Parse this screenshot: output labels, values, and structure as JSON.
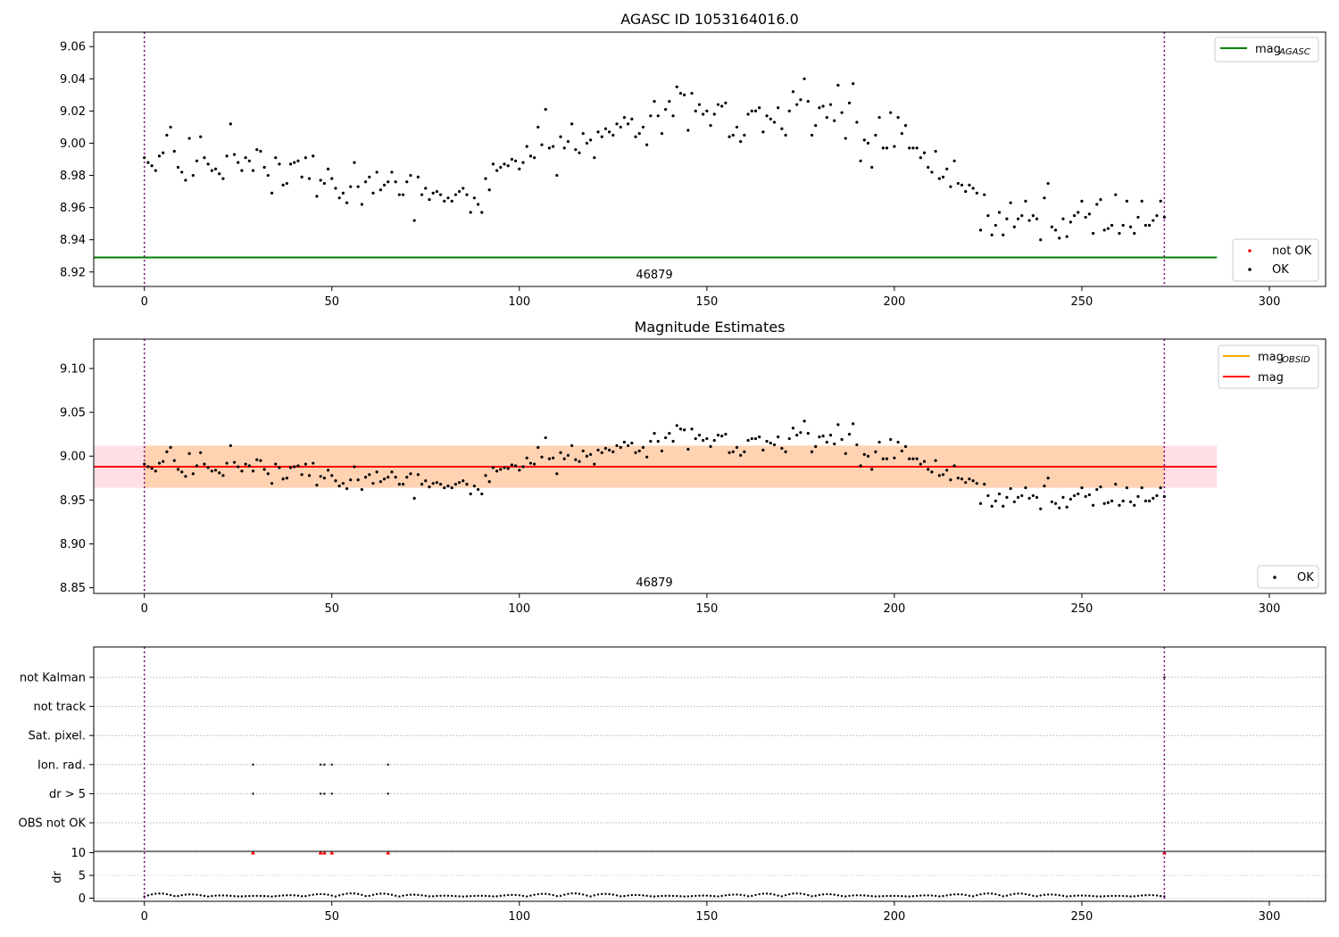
{
  "chart_data": [
    {
      "type": "scatter",
      "title": "AGASC ID 1053164016.0",
      "xlim": [
        -13.5,
        315
      ],
      "ylim": [
        8.911,
        9.069
      ],
      "x_ticks": [
        "0",
        "50",
        "100",
        "150",
        "200",
        "250",
        "300"
      ],
      "y_ticks": [
        "8.92",
        "8.94",
        "8.96",
        "8.98",
        "9.00",
        "9.02",
        "9.04",
        "9.06"
      ],
      "grid": false,
      "obsid_label": "46879",
      "obs_boundaries": [
        0,
        272
      ],
      "mag_agasc": 8.929,
      "legend_upper": {
        "position": "top-right",
        "items": [
          {
            "label": "mag",
            "sub": "AGASC",
            "color": "#008000",
            "kind": "line"
          }
        ]
      },
      "legend_lower": {
        "position": "bottom-right",
        "items": [
          {
            "label": "not OK",
            "color": "#ff0000",
            "kind": "dot"
          },
          {
            "label": "OK",
            "color": "#000000",
            "kind": "dot"
          }
        ]
      },
      "series": [
        {
          "name": "OK",
          "color": "#000000",
          "x_start": 0,
          "x_step": 1,
          "values": [
            8.991,
            8.988,
            8.986,
            8.983,
            8.992,
            8.994,
            9.005,
            9.01,
            8.995,
            8.985,
            8.982,
            8.977,
            9.003,
            8.98,
            8.989,
            9.004,
            8.991,
            8.987,
            8.983,
            8.984,
            8.981,
            8.978,
            8.992,
            9.012,
            8.993,
            8.988,
            8.983,
            8.991,
            8.989,
            8.983,
            8.996,
            8.995,
            8.985,
            8.98,
            8.969,
            8.991,
            8.987,
            8.974,
            8.975,
            8.987,
            8.988,
            8.989,
            8.979,
            8.991,
            8.978,
            8.992,
            8.967,
            8.977,
            8.975,
            8.984,
            8.978,
            8.972,
            8.966,
            8.969,
            8.963,
            8.973,
            8.988,
            8.973,
            8.962,
            8.976,
            8.979,
            8.969,
            8.982,
            8.971,
            8.974,
            8.976,
            8.982,
            8.976,
            8.968,
            8.968,
            8.976,
            8.98,
            8.952,
            8.979,
            8.968,
            8.972,
            8.965,
            8.969,
            8.97,
            8.968,
            8.964,
            8.966,
            8.964,
            8.968,
            8.97,
            8.972,
            8.968,
            8.957,
            8.966,
            8.962,
            8.957,
            8.978,
            8.971,
            8.987,
            8.983,
            8.985,
            8.987,
            8.986,
            8.99,
            8.989,
            8.984,
            8.988,
            8.998,
            8.992,
            8.991,
            9.01,
            8.999,
            9.021,
            8.997,
            8.998,
            8.98,
            9.004,
            8.997,
            9.001,
            9.012,
            8.996,
            8.994,
            9.006,
            9.0,
            9.002,
            8.991,
            9.007,
            9.004,
            9.009,
            9.007,
            9.005,
            9.012,
            9.01,
            9.016,
            9.012,
            9.015,
            9.004,
            9.006,
            9.01,
            8.999,
            9.017,
            9.026,
            9.017,
            9.006,
            9.021,
            9.026,
            9.017,
            9.035,
            9.031,
            9.03,
            9.008,
            9.031,
            9.02,
            9.024,
            9.018,
            9.02,
            9.011,
            9.018,
            9.024,
            9.023,
            9.025,
            9.004,
            9.005,
            9.01,
            9.001,
            9.005,
            9.018,
            9.02,
            9.02,
            9.022,
            9.007,
            9.017,
            9.015,
            9.013,
            9.022,
            9.009,
            9.005,
            9.02,
            9.032,
            9.024,
            9.027,
            9.04,
            9.026,
            9.005,
            9.011,
            9.022,
            9.023,
            9.016,
            9.024,
            9.014,
            9.036,
            9.019,
            9.003,
            9.025,
            9.037,
            9.013,
            8.989,
            9.002,
            9.0,
            8.985,
            9.005,
            9.016,
            8.997,
            8.997,
            9.019,
            8.998,
            9.016,
            9.006,
            9.011,
            8.997,
            8.997,
            8.997,
            8.991,
            8.994,
            8.985,
            8.982,
            8.995,
            8.978,
            8.979,
            8.984,
            8.973,
            8.989,
            8.975,
            8.974,
            8.97,
            8.974,
            8.972,
            8.969,
            8.946,
            8.968,
            8.955,
            8.943,
            8.949,
            8.957,
            8.943,
            8.953,
            8.963,
            8.948,
            8.953,
            8.955,
            8.964,
            8.952,
            8.955,
            8.953,
            8.94,
            8.966,
            8.975,
            8.948,
            8.946,
            8.941,
            8.953,
            8.942,
            8.951,
            8.955,
            8.957,
            8.964,
            8.954,
            8.956,
            8.944,
            8.962,
            8.965,
            8.946,
            8.947,
            8.949,
            8.968,
            8.944,
            8.949,
            8.964,
            8.948,
            8.944,
            8.954,
            8.964,
            8.949,
            8.949,
            8.952,
            8.955,
            8.964,
            8.954
          ]
        }
      ]
    },
    {
      "type": "scatter",
      "title": "Magnitude Estimates",
      "xlim": [
        -13.5,
        315
      ],
      "ylim": [
        8.8435,
        9.1335
      ],
      "x_ticks": [
        "0",
        "50",
        "100",
        "150",
        "200",
        "250",
        "300"
      ],
      "y_ticks": [
        "8.85",
        "8.90",
        "8.95",
        "9.00",
        "9.05",
        "9.10"
      ],
      "grid": false,
      "obsid_label": "46879",
      "obs_boundaries": [
        0,
        272
      ],
      "mag_obsid": 8.988,
      "mag": 8.988,
      "mag_band": [
        8.964,
        9.012
      ],
      "legend_upper": {
        "position": "top-right",
        "items": [
          {
            "label": "mag",
            "sub": "OBSID",
            "color": "#ffa500",
            "kind": "line"
          },
          {
            "label": "mag",
            "color": "#ff0000",
            "kind": "line"
          }
        ]
      },
      "legend_lower": {
        "position": "bottom-right",
        "items": [
          {
            "label": "OK",
            "color": "#000000",
            "kind": "dot"
          }
        ]
      }
    },
    {
      "type": "scatter",
      "xlim": [
        -13.5,
        315
      ],
      "x_ticks": [
        "0",
        "50",
        "100",
        "150",
        "200",
        "250",
        "300"
      ],
      "flag_labels": [
        "not Kalman",
        "not track",
        "Sat. pixel.",
        "Ion. rad.",
        "dr > 5",
        "OBS not OK"
      ],
      "flag_points": [
        {
          "flag": "Ion. rad.",
          "x": [
            29,
            47,
            48,
            50,
            65
          ]
        },
        {
          "flag": "dr > 5",
          "x": [
            29,
            47,
            48,
            50,
            65
          ]
        },
        {
          "flag": "not Kalman",
          "x": [
            272
          ]
        }
      ],
      "ylabel": "dr",
      "dr_ylim": [
        -0.7,
        10.3
      ],
      "dr_ticks": [
        "0",
        "5",
        "10"
      ],
      "dr_clipped": {
        "value": 10,
        "color": "#ff0000",
        "x": [
          29,
          47,
          48,
          50,
          65,
          272
        ]
      },
      "dr_values_summary": "small values ~0.2-1.7 for all points"
    }
  ]
}
